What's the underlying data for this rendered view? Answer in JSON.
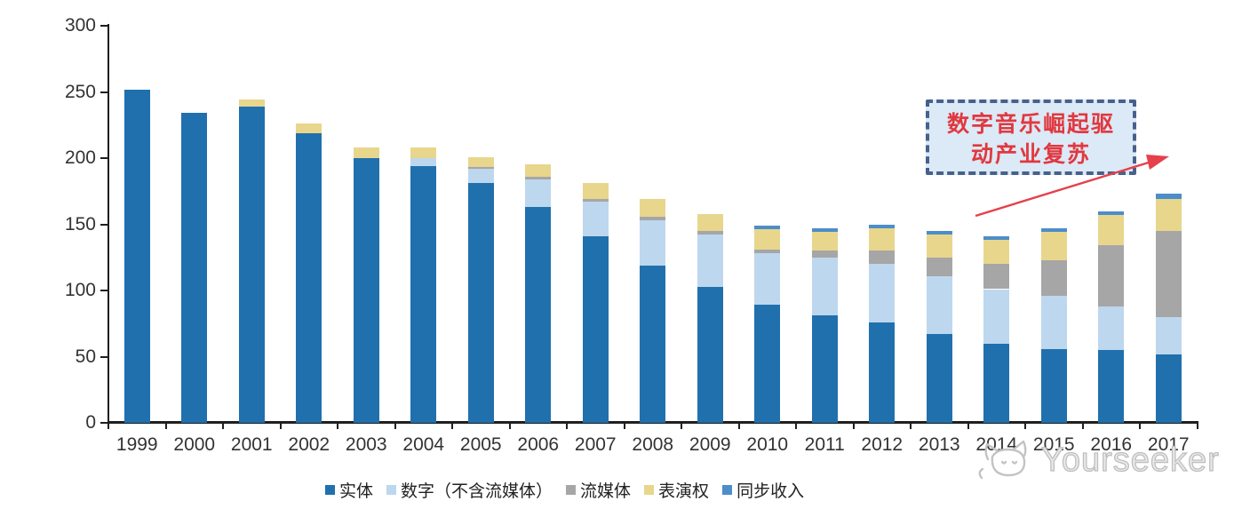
{
  "chart_data": {
    "type": "bar",
    "stacked": true,
    "title": "",
    "xlabel": "",
    "ylabel": "",
    "ylim": [
      0,
      300
    ],
    "yticks": [
      0,
      50,
      100,
      150,
      200,
      250,
      300
    ],
    "grid": false,
    "legend_position": "bottom",
    "years": [
      "1999",
      "2000",
      "2001",
      "2002",
      "2003",
      "2004",
      "2005",
      "2006",
      "2007",
      "2008",
      "2009",
      "2010",
      "2011",
      "2012",
      "2013",
      "2014",
      "2015",
      "2016",
      "2017"
    ],
    "series": [
      {
        "key": "physical",
        "name": "实体",
        "color": "#2070AE",
        "values": [
          252,
          234,
          239,
          219,
          200,
          194,
          181,
          163,
          141,
          119,
          103,
          89,
          81,
          76,
          67,
          60,
          56,
          55,
          52
        ]
      },
      {
        "key": "digital-ex-streaming",
        "name": "数字（不含流媒体）",
        "color": "#BDD7EE",
        "values": [
          0,
          0,
          0,
          0,
          0,
          6,
          11,
          21,
          26,
          34,
          39,
          39,
          44,
          44,
          44,
          41,
          40,
          33,
          28
        ]
      },
      {
        "key": "streaming",
        "name": "流媒体",
        "color": "#A6A6A6",
        "values": [
          0,
          0,
          0,
          0,
          0,
          0,
          1,
          2,
          2,
          3,
          3,
          3,
          5,
          10,
          14,
          19,
          27,
          46,
          65
        ]
      },
      {
        "key": "performance-rights",
        "name": "表演权",
        "color": "#E8D68D",
        "values": [
          0,
          0,
          5,
          7,
          8,
          8,
          8,
          9,
          12,
          13,
          13,
          15,
          14,
          17,
          17,
          18,
          21,
          23,
          24
        ]
      },
      {
        "key": "sync-revenue",
        "name": "同步收入",
        "color": "#4D8DC9",
        "values": [
          0,
          0,
          0,
          0,
          0,
          0,
          0,
          0,
          0,
          0,
          0,
          3,
          3,
          3,
          3,
          3,
          3,
          3,
          4
        ]
      }
    ]
  },
  "annotation": {
    "line1": "数字音乐崛起驱",
    "line2": "动产业复苏",
    "border_color": "#46618c",
    "fill_color": "#dce9f6",
    "text_color": "#e1383f",
    "arrow_color": "#e6404a"
  },
  "watermark": {
    "text": "Yourseeker"
  }
}
